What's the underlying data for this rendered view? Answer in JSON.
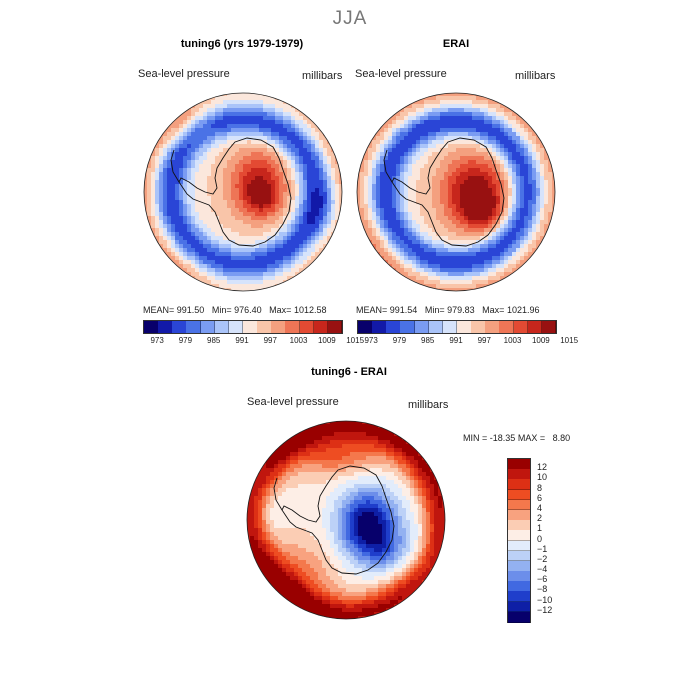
{
  "figure": {
    "title": "JJA"
  },
  "chart_data": [
    {
      "type": "heatmap",
      "id": "model",
      "title": "tuning6 (yrs 1979-1979)",
      "variable": "Sea-level pressure",
      "units": "millibars",
      "stats": {
        "mean": "991.50",
        "min": "976.40",
        "max": "1012.58"
      },
      "stats_labels": {
        "mean": "MEAN=",
        "min": "Min=",
        "max": "Max="
      },
      "colorbar_ticks": [
        "973",
        "979",
        "985",
        "991",
        "997",
        "1003",
        "1009",
        "1015"
      ]
    },
    {
      "type": "heatmap",
      "id": "obs",
      "title": "ERAI",
      "variable": "Sea-level pressure",
      "units": "millibars",
      "stats": {
        "mean": "991.54",
        "min": "979.83",
        "max": "1021.96"
      },
      "stats_labels": {
        "mean": "MEAN=",
        "min": "Min=",
        "max": "Max="
      },
      "colorbar_ticks": [
        "973",
        "979",
        "985",
        "991",
        "997",
        "1003",
        "1009",
        "1015"
      ]
    },
    {
      "type": "heatmap",
      "id": "diff",
      "title": "tuning6 - ERAI",
      "variable": "Sea-level pressure",
      "units": "millibars",
      "range_text": {
        "min_label": "MIN =",
        "min": "-18.35",
        "max_label": "MAX =",
        "max": "8.80"
      },
      "colorbar_ticks": [
        "12",
        "10",
        "8",
        "6",
        "4",
        "2",
        "1",
        "0",
        "−1",
        "−2",
        "−4",
        "−6",
        "−8",
        "−10",
        "−12"
      ]
    }
  ],
  "colors": {
    "abs_scale": [
      "#08006b",
      "#1219a8",
      "#2a45d6",
      "#4a72e6",
      "#7a9cf2",
      "#aac4f9",
      "#d6e3fb",
      "#fbe7dc",
      "#f9c5a9",
      "#f4a07f",
      "#ee7556",
      "#e34a33",
      "#c7261c",
      "#981111"
    ],
    "diff_scale": [
      "#990000",
      "#c0160e",
      "#dd3015",
      "#ee4d22",
      "#f4784c",
      "#f8a27f",
      "#fbcdb4",
      "#fdeee6",
      "#e2ecfb",
      "#bcd1f7",
      "#93b1f1",
      "#6c8eea",
      "#4169e1",
      "#1f3ecb",
      "#0e1fa6",
      "#07006b"
    ]
  }
}
